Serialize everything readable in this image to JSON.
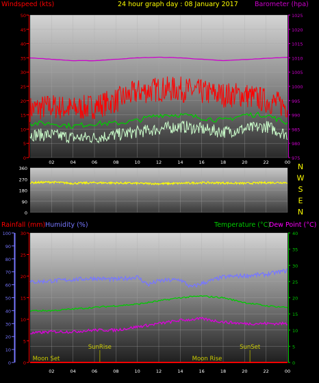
{
  "header": {
    "windspeed": "Windspeed (kts)",
    "title": "24 hour graph day : 08 January 2017",
    "barometer": "Barometer (hpa)"
  },
  "rainfall_label": "Rainfall (mm)",
  "humidity_label": "Humidity (%)",
  "temperature_label": "Temperature (°C)",
  "dewpoint_label": "Dew Point (°C)",
  "compass": [
    "N",
    "W",
    "S",
    "E",
    "N"
  ],
  "events": {
    "moonset": "Moon Set",
    "sunrise": "SunRise",
    "moonrise": "Moon Rise",
    "sunset": "SunSet"
  },
  "colors": {
    "gust": "#ff0000",
    "avg_wind": "#00cc00",
    "wind_speed": "#ccffcc",
    "barometer": "#cc00cc",
    "direction": "#ffff00",
    "humidity": "#7777ff",
    "temperature": "#00cc00",
    "dewpoint": "#dd00dd",
    "rain": "#ff0000",
    "event_text": "#cccc00",
    "event_line": "#999900"
  },
  "chart_data": [
    {
      "type": "line",
      "x_ticks": [
        "02",
        "04",
        "06",
        "08",
        "10",
        "12",
        "14",
        "16",
        "18",
        "20",
        "22",
        "00"
      ],
      "y_left_ticks": [
        "0",
        "5",
        "10",
        "15",
        "20",
        "25",
        "30",
        "35",
        "40",
        "45",
        "50"
      ],
      "y_left_range": [
        0,
        50
      ],
      "y_right_ticks": [
        "975",
        "980",
        "985",
        "990",
        "995",
        "1000",
        "1005",
        "1010",
        "1015",
        "1020",
        "1025"
      ],
      "y_right_range": [
        975,
        1025
      ],
      "series": {
        "gust": {
          "x": [
            0,
            2,
            4,
            6,
            8,
            10,
            12,
            14,
            16,
            18,
            20,
            22,
            24
          ],
          "y": [
            17,
            18,
            17,
            18,
            20,
            23,
            24,
            24,
            23,
            22,
            22,
            20,
            18
          ]
        },
        "avg_wind": {
          "x": [
            0,
            2,
            4,
            6,
            8,
            10,
            12,
            14,
            16,
            18,
            20,
            22,
            24
          ],
          "y": [
            12,
            12,
            11,
            12,
            12,
            13,
            15,
            15,
            14,
            13,
            15,
            15,
            12
          ]
        },
        "wind_speed": {
          "x": [
            0,
            2,
            4,
            6,
            8,
            10,
            12,
            14,
            16,
            18,
            20,
            22,
            24
          ],
          "y": [
            8,
            8,
            7,
            7,
            8,
            9,
            10,
            11,
            10,
            9,
            10,
            11,
            8
          ]
        },
        "barometer": {
          "x": [
            0,
            2,
            4,
            6,
            8,
            10,
            12,
            14,
            16,
            18,
            20,
            22,
            24
          ],
          "y": [
            1010,
            1009.5,
            1009,
            1009,
            1009.5,
            1010,
            1010.2,
            1010,
            1009.5,
            1009,
            1009.4,
            1009.8,
            1010.2
          ]
        }
      }
    },
    {
      "type": "line",
      "y_ticks": [
        "0",
        "90",
        "180",
        "270",
        "360"
      ],
      "y_range": [
        0,
        360
      ],
      "series": {
        "direction": {
          "x": [
            0,
            2,
            4,
            6,
            8,
            10,
            12,
            14,
            16,
            18,
            20,
            22,
            24
          ],
          "y": [
            240,
            245,
            235,
            240,
            238,
            235,
            232,
            235,
            240,
            238,
            235,
            240,
            242
          ]
        }
      }
    },
    {
      "type": "line",
      "y_left_hum_ticks": [
        "0",
        "10",
        "20",
        "30",
        "40",
        "50",
        "60",
        "70",
        "80",
        "90",
        "100"
      ],
      "y_left_hum_range": [
        0,
        100
      ],
      "y_left_rain_ticks": [
        "0",
        "5",
        "10",
        "15",
        "20",
        "25",
        "30"
      ],
      "y_left_rain_range": [
        0,
        30
      ],
      "y_right_ticks": [
        "0",
        "5",
        "10",
        "15",
        "20",
        "25",
        "30",
        "35",
        "40"
      ],
      "y_right_range": [
        0,
        40
      ],
      "series": {
        "humidity": {
          "x": [
            0,
            2,
            4,
            6,
            8,
            10,
            11,
            12,
            14,
            15,
            16,
            18,
            20,
            22,
            24
          ],
          "y": [
            62,
            63,
            64,
            65,
            64,
            66,
            60,
            63,
            64,
            58,
            61,
            66,
            67,
            68,
            71
          ]
        },
        "temperature": {
          "x": [
            0,
            2,
            4,
            6,
            8,
            10,
            12,
            14,
            16,
            18,
            20,
            22,
            24
          ],
          "y": [
            16,
            16,
            16.5,
            17,
            17.5,
            18,
            19,
            20,
            20.5,
            20,
            18.5,
            17.5,
            17
          ]
        },
        "dewpoint": {
          "x": [
            0,
            2,
            4,
            6,
            8,
            10,
            12,
            14,
            16,
            18,
            20,
            22,
            24
          ],
          "y": [
            9,
            9.5,
            9.5,
            10,
            10,
            11,
            12,
            13,
            13.5,
            12.5,
            12,
            12,
            12
          ]
        },
        "rain": {
          "x": [
            0,
            24
          ],
          "y": [
            0,
            0
          ]
        }
      },
      "events": [
        {
          "label": "moonset",
          "hour": 1.5
        },
        {
          "label": "sunrise",
          "hour": 6.5
        },
        {
          "label": "moonrise",
          "hour": 16.5
        },
        {
          "label": "sunset",
          "hour": 20.5
        }
      ]
    }
  ]
}
